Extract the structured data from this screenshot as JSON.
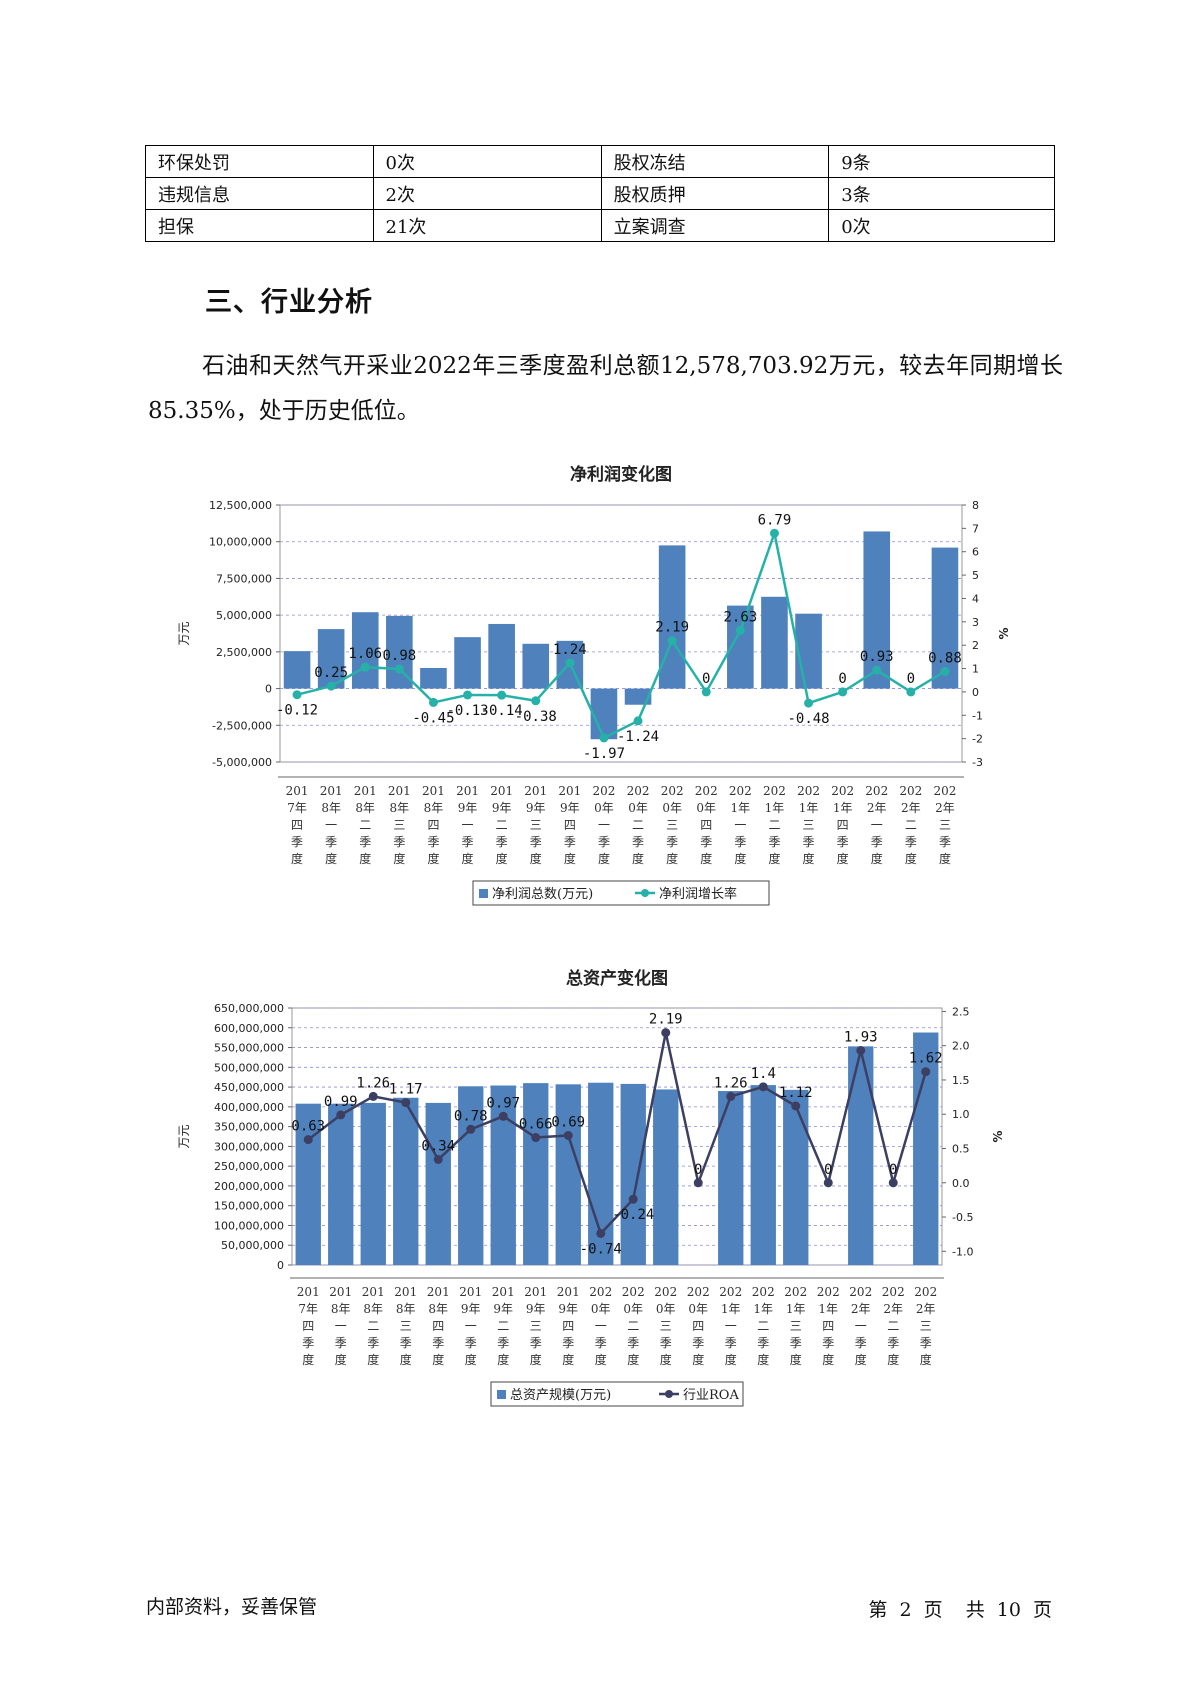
{
  "table": {
    "rows": [
      [
        "环保处罚",
        "0次",
        "股权冻结",
        "9条"
      ],
      [
        "违规信息",
        "2次",
        "股权质押",
        "3条"
      ],
      [
        "担保",
        "21次",
        "立案调查",
        "0次"
      ]
    ]
  },
  "section": {
    "title": "三、行业分析"
  },
  "paragraph": "石油和天然气开采业2022年三季度盈利总额12,578,703.92万元，较去年同期增长85.35%，处于历史低位。",
  "footer": {
    "left": "内部资料，妥善保管",
    "page_label": "第",
    "page_num": "2",
    "page_unit": "页",
    "total_label": "共",
    "total_num": "10",
    "total_unit": "页"
  },
  "chart_data": [
    {
      "type": "bar",
      "title": "净利润变化图",
      "ylabel": "万元",
      "y2label": "%",
      "ylim": [
        -5000000,
        12500000
      ],
      "yticks": [
        -5000000,
        -2500000,
        0,
        2500000,
        5000000,
        7500000,
        10000000,
        12500000
      ],
      "yticklabels": [
        "-5,000,000",
        "-2,500,000",
        "0",
        "2,500,000",
        "5,000,000",
        "7,500,000",
        "10,000,000",
        "12,500,000"
      ],
      "y2lim": [
        -3,
        8
      ],
      "y2ticks": [
        -3,
        -2,
        -1,
        0,
        1,
        2,
        3,
        4,
        5,
        6,
        7,
        8
      ],
      "categories": [
        [
          "201",
          "7年",
          "四",
          "季",
          "度"
        ],
        [
          "201",
          "8年",
          "一",
          "季",
          "度"
        ],
        [
          "201",
          "8年",
          "二",
          "季",
          "度"
        ],
        [
          "201",
          "8年",
          "三",
          "季",
          "度"
        ],
        [
          "201",
          "8年",
          "四",
          "季",
          "度"
        ],
        [
          "201",
          "9年",
          "一",
          "季",
          "度"
        ],
        [
          "201",
          "9年",
          "二",
          "季",
          "度"
        ],
        [
          "201",
          "9年",
          "三",
          "季",
          "度"
        ],
        [
          "201",
          "9年",
          "四",
          "季",
          "度"
        ],
        [
          "202",
          "0年",
          "一",
          "季",
          "度"
        ],
        [
          "202",
          "0年",
          "二",
          "季",
          "度"
        ],
        [
          "202",
          "0年",
          "三",
          "季",
          "度"
        ],
        [
          "202",
          "0年",
          "四",
          "季",
          "度"
        ],
        [
          "202",
          "1年",
          "一",
          "季",
          "度"
        ],
        [
          "202",
          "1年",
          "二",
          "季",
          "度"
        ],
        [
          "202",
          "1年",
          "三",
          "季",
          "度"
        ],
        [
          "202",
          "1年",
          "四",
          "季",
          "度"
        ],
        [
          "202",
          "2年",
          "一",
          "季",
          "度"
        ],
        [
          "202",
          "2年",
          "二",
          "季",
          "度"
        ],
        [
          "202",
          "2年",
          "三",
          "季",
          "度"
        ]
      ],
      "series": [
        {
          "name": "净利润总数(万元)",
          "kind": "bar",
          "color": "#4f81bd",
          "values": [
            2550000,
            4050000,
            5200000,
            4950000,
            1400000,
            3500000,
            4400000,
            3050000,
            3250000,
            -3450000,
            -1100000,
            9750000,
            0,
            5650000,
            6250000,
            5100000,
            0,
            10700000,
            0,
            9600000
          ]
        },
        {
          "name": "净利润增长率",
          "kind": "line",
          "axis": "right",
          "color": "#26b1a8",
          "values": [
            -0.12,
            0.25,
            1.06,
            0.98,
            -0.45,
            -0.13,
            -0.14,
            -0.38,
            1.24,
            -1.97,
            -1.24,
            2.19,
            0,
            2.63,
            6.79,
            -0.48,
            0,
            0.93,
            0,
            0.88
          ],
          "labels": [
            "-0.12",
            "0.25",
            "1.06",
            "0.98",
            "-0.45",
            "-0.13",
            "-0.14",
            "-0.38",
            "1.24",
            "-1.97",
            "-1.24",
            "2.19",
            "0",
            "2.63",
            "6.79",
            "-0.48",
            "0",
            "0.93",
            "0",
            "0.88"
          ]
        }
      ],
      "legend": "bottom",
      "grid": true
    },
    {
      "type": "bar",
      "title": "总资产变化图",
      "ylabel": "万元",
      "y2label": "%",
      "ylim": [
        0,
        650000000
      ],
      "yticks": [
        0,
        50000000,
        100000000,
        150000000,
        200000000,
        250000000,
        300000000,
        350000000,
        400000000,
        450000000,
        500000000,
        550000000,
        600000000,
        650000000
      ],
      "yticklabels": [
        "0",
        "50,000,000",
        "100,000,000",
        "150,000,000",
        "200,000,000",
        "250,000,000",
        "300,000,000",
        "350,000,000",
        "400,000,000",
        "450,000,000",
        "500,000,000",
        "550,000,000",
        "600,000,000",
        "650,000,000"
      ],
      "y2lim": [
        -1.2,
        2.55
      ],
      "y2ticks": [
        -1.0,
        -0.5,
        0.0,
        0.5,
        1.0,
        1.5,
        2.0,
        2.5
      ],
      "y2ticklabels": [
        "-1.0",
        "-0.5",
        "0.0",
        "0.5",
        "1.0",
        "1.5",
        "2.0",
        "2.5"
      ],
      "categories": [
        [
          "201",
          "7年",
          "四",
          "季",
          "度"
        ],
        [
          "201",
          "8年",
          "一",
          "季",
          "度"
        ],
        [
          "201",
          "8年",
          "二",
          "季",
          "度"
        ],
        [
          "201",
          "8年",
          "三",
          "季",
          "度"
        ],
        [
          "201",
          "8年",
          "四",
          "季",
          "度"
        ],
        [
          "201",
          "9年",
          "一",
          "季",
          "度"
        ],
        [
          "201",
          "9年",
          "二",
          "季",
          "度"
        ],
        [
          "201",
          "9年",
          "三",
          "季",
          "度"
        ],
        [
          "201",
          "9年",
          "四",
          "季",
          "度"
        ],
        [
          "202",
          "0年",
          "一",
          "季",
          "度"
        ],
        [
          "202",
          "0年",
          "二",
          "季",
          "度"
        ],
        [
          "202",
          "0年",
          "三",
          "季",
          "度"
        ],
        [
          "202",
          "0年",
          "四",
          "季",
          "度"
        ],
        [
          "202",
          "1年",
          "一",
          "季",
          "度"
        ],
        [
          "202",
          "1年",
          "二",
          "季",
          "度"
        ],
        [
          "202",
          "1年",
          "三",
          "季",
          "度"
        ],
        [
          "202",
          "1年",
          "四",
          "季",
          "度"
        ],
        [
          "202",
          "2年",
          "一",
          "季",
          "度"
        ],
        [
          "202",
          "2年",
          "二",
          "季",
          "度"
        ],
        [
          "202",
          "2年",
          "三",
          "季",
          "度"
        ]
      ],
      "series": [
        {
          "name": "总资产规模(万元)",
          "kind": "bar",
          "color": "#4f81bd",
          "values": [
            408000000,
            408000000,
            410000000,
            423000000,
            410000000,
            452000000,
            454000000,
            460000000,
            457000000,
            461000000,
            458000000,
            444000000,
            0,
            440000000,
            455000000,
            443000000,
            0,
            553000000,
            0,
            588000000
          ]
        },
        {
          "name": "行业ROA",
          "kind": "line",
          "axis": "right",
          "color": "#3c3f62",
          "values": [
            0.63,
            0.99,
            1.26,
            1.17,
            0.34,
            0.78,
            0.97,
            0.66,
            0.69,
            -0.74,
            -0.24,
            2.19,
            0,
            1.26,
            1.4,
            1.12,
            0,
            1.93,
            0,
            1.62
          ],
          "labels": [
            "0.63",
            "0.99",
            "1.26",
            "1.17",
            "0.34",
            "0.78",
            "0.97",
            "0.66",
            "0.69",
            "-0.74",
            "-0.24",
            "2.19",
            "0",
            "1.26",
            "1.4",
            "1.12",
            "0",
            "1.93",
            "0",
            "1.62"
          ]
        }
      ],
      "legend": "bottom",
      "grid": true
    }
  ]
}
